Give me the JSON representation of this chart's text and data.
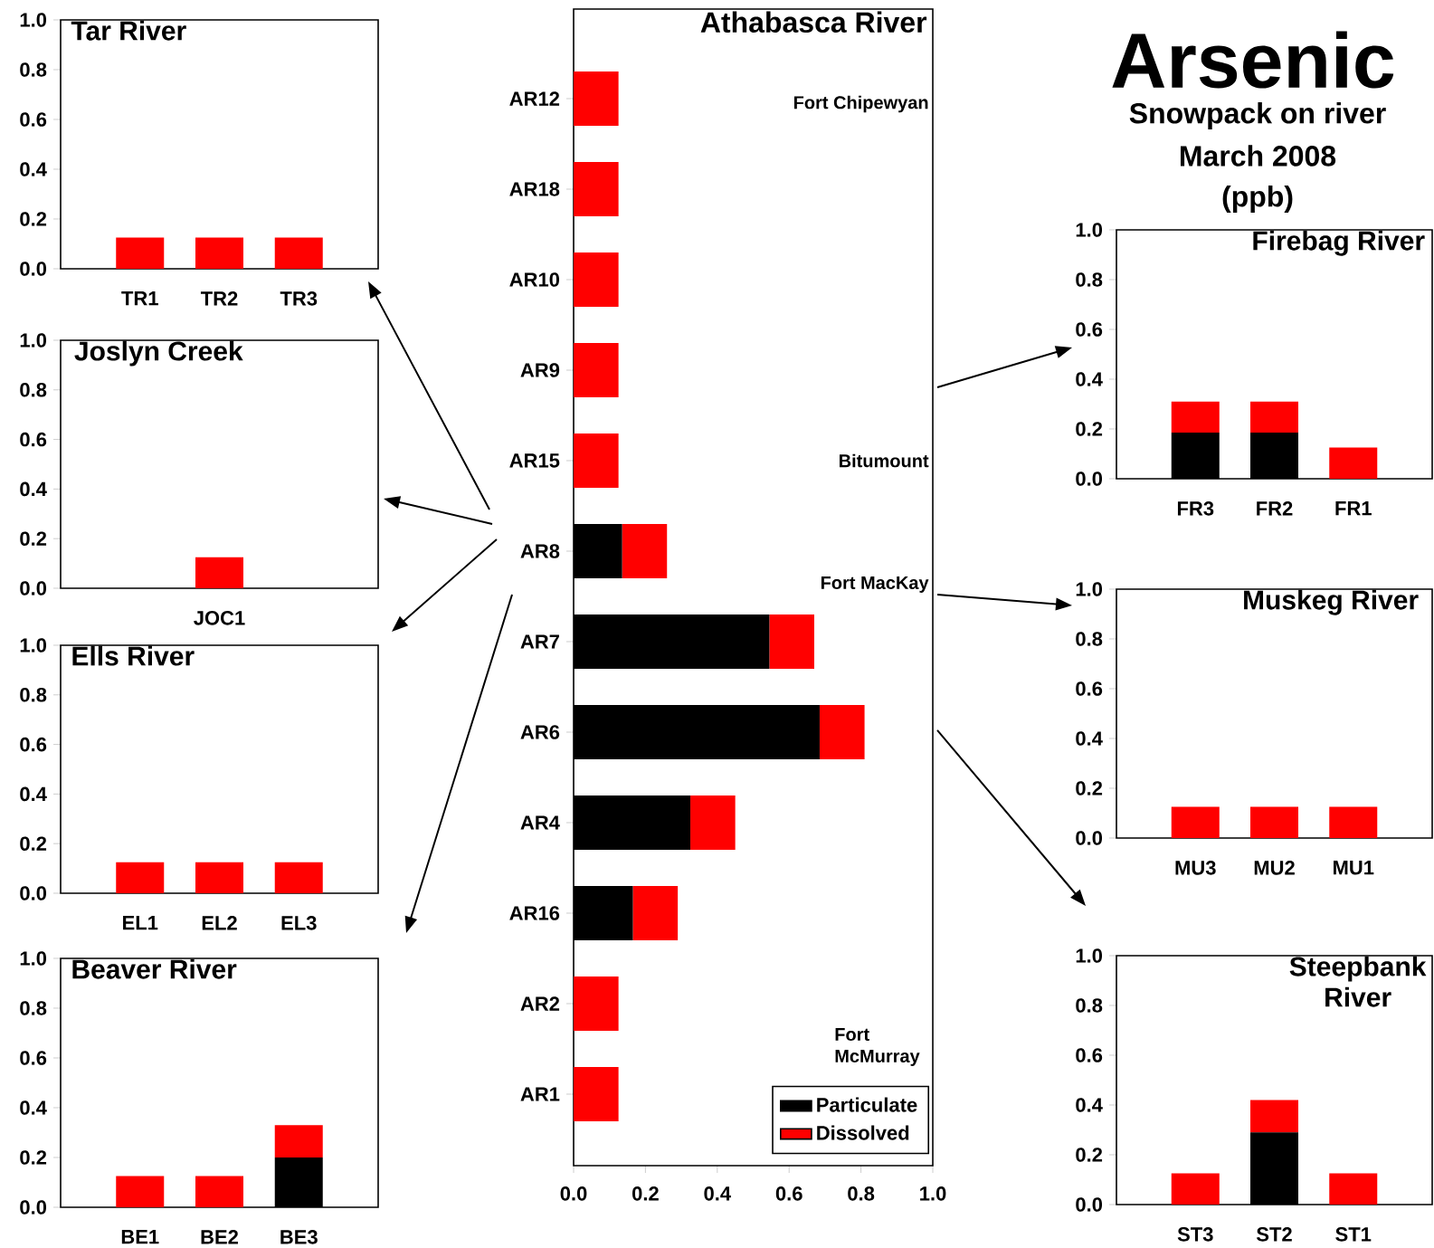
{
  "chart_data": [
    {
      "type": "bar",
      "stacked": true,
      "title": "Tar River",
      "categories": [
        "TR1",
        "TR2",
        "TR3"
      ],
      "series": [
        {
          "color": "#000000",
          "values": [
            0,
            0,
            0
          ]
        },
        {
          "color": "#ff0000",
          "values": [
            0.125,
            0.125,
            0.125
          ]
        }
      ],
      "ylim": [
        0,
        1
      ],
      "yticks": [
        {
          "value": 0,
          "label": "0.0"
        },
        {
          "value": 0.2,
          "label": "0.2"
        },
        {
          "value": 0.4,
          "label": "0.4"
        },
        {
          "value": 0.6,
          "label": "0.6"
        },
        {
          "value": 0.8,
          "label": "0.8"
        },
        {
          "value": 1,
          "label": "1.0"
        }
      ]
    },
    {
      "type": "bar",
      "stacked": true,
      "title": "Joslyn Creek",
      "categories": [
        "JOC1"
      ],
      "series": [
        {
          "color": "#000000",
          "values": [
            0
          ]
        },
        {
          "color": "#ff0000",
          "values": [
            0.125
          ]
        }
      ],
      "ylim": [
        0,
        1
      ],
      "yticks": [
        {
          "value": 0,
          "label": "0.0"
        },
        {
          "value": 0.2,
          "label": "0.2"
        },
        {
          "value": 0.4,
          "label": "0.4"
        },
        {
          "value": 0.6,
          "label": "0.6"
        },
        {
          "value": 0.8,
          "label": "0.8"
        },
        {
          "value": 1,
          "label": "1.0"
        }
      ]
    },
    {
      "type": "bar",
      "stacked": true,
      "title": "Ells River",
      "categories": [
        "EL1",
        "EL2",
        "EL3"
      ],
      "series": [
        {
          "color": "#000000",
          "values": [
            0,
            0,
            0
          ]
        },
        {
          "color": "#ff0000",
          "values": [
            0.125,
            0.125,
            0.125
          ]
        }
      ],
      "ylim": [
        0,
        1
      ],
      "yticks": [
        {
          "value": 0,
          "label": "0.0"
        },
        {
          "value": 0.2,
          "label": "0.2"
        },
        {
          "value": 0.4,
          "label": "0.4"
        },
        {
          "value": 0.6,
          "label": "0.6"
        },
        {
          "value": 0.8,
          "label": "0.8"
        },
        {
          "value": 1,
          "label": "1.0"
        }
      ]
    },
    {
      "type": "bar",
      "stacked": true,
      "title": "Beaver River",
      "categories": [
        "BE1",
        "BE2",
        "BE3"
      ],
      "series": [
        {
          "color": "#000000",
          "values": [
            0,
            0,
            0.2
          ]
        },
        {
          "color": "#ff0000",
          "values": [
            0.125,
            0.125,
            0.13
          ]
        }
      ],
      "ylim": [
        0,
        1
      ],
      "yticks": [
        {
          "value": 0,
          "label": "0.0"
        },
        {
          "value": 0.2,
          "label": "0.2"
        },
        {
          "value": 0.4,
          "label": "0.4"
        },
        {
          "value": 0.6,
          "label": "0.6"
        },
        {
          "value": 0.8,
          "label": "0.8"
        },
        {
          "value": 1,
          "label": "1.0"
        }
      ]
    },
    {
      "type": "bar",
      "stacked": true,
      "orientation": "horizontal",
      "title": "Athabasca River",
      "categories": [
        "AR12",
        "AR18",
        "AR10",
        "AR9",
        "AR15",
        "AR8",
        "AR7",
        "AR6",
        "AR4",
        "AR16",
        "AR2",
        "AR1"
      ],
      "series": [
        {
          "name": "Particulate",
          "color": "#000000",
          "values": [
            0,
            0,
            0,
            0,
            0,
            0.135,
            0.545,
            0.685,
            0.325,
            0.165,
            0,
            0
          ]
        },
        {
          "name": "Dissolved",
          "color": "#ff0000",
          "values": [
            0.125,
            0.125,
            0.125,
            0.125,
            0.125,
            0.125,
            0.125,
            0.125,
            0.125,
            0.125,
            0.125,
            0.125
          ]
        }
      ],
      "xlim": [
        0,
        1
      ],
      "xticks": [
        {
          "value": 0,
          "label": "0.0"
        },
        {
          "value": 0.2,
          "label": "0.2"
        },
        {
          "value": 0.4,
          "label": "0.4"
        },
        {
          "value": 0.6,
          "label": "0.6"
        },
        {
          "value": 0.8,
          "label": "0.8"
        },
        {
          "value": 1,
          "label": "1.0"
        }
      ],
      "legend": "bottom right",
      "annotations": [
        "Fort Chipewyan",
        "Bitumount",
        "Fort MacKay",
        "Fort McMurray"
      ]
    },
    {
      "type": "bar",
      "stacked": true,
      "title": "Firebag River",
      "categories": [
        "FR3",
        "FR2",
        "FR1"
      ],
      "series": [
        {
          "color": "#000000",
          "values": [
            0.185,
            0.185,
            0
          ]
        },
        {
          "color": "#ff0000",
          "values": [
            0.125,
            0.125,
            0.125
          ]
        }
      ],
      "ylim": [
        0,
        1
      ],
      "yticks": [
        {
          "value": 0,
          "label": "0.0"
        },
        {
          "value": 0.2,
          "label": "0.2"
        },
        {
          "value": 0.4,
          "label": "0.4"
        },
        {
          "value": 0.6,
          "label": "0.6"
        },
        {
          "value": 0.8,
          "label": "0.8"
        },
        {
          "value": 1,
          "label": "1.0"
        }
      ]
    },
    {
      "type": "bar",
      "stacked": true,
      "title": "Muskeg River",
      "categories": [
        "MU3",
        "MU2",
        "MU1"
      ],
      "series": [
        {
          "color": "#000000",
          "values": [
            0,
            0,
            0
          ]
        },
        {
          "color": "#ff0000",
          "values": [
            0.125,
            0.125,
            0.125
          ]
        }
      ],
      "ylim": [
        0,
        1
      ],
      "yticks": [
        {
          "value": 0,
          "label": "0.0"
        },
        {
          "value": 0.2,
          "label": "0.2"
        },
        {
          "value": 0.4,
          "label": "0.4"
        },
        {
          "value": 0.6,
          "label": "0.6"
        },
        {
          "value": 0.8,
          "label": "0.8"
        },
        {
          "value": 1,
          "label": "1.0"
        }
      ]
    },
    {
      "type": "bar",
      "stacked": true,
      "title": "Steepbank River",
      "categories": [
        "ST3",
        "ST2",
        "ST1"
      ],
      "series": [
        {
          "color": "#000000",
          "values": [
            0,
            0.29,
            0
          ]
        },
        {
          "color": "#ff0000",
          "values": [
            0.125,
            0.13,
            0.125
          ]
        }
      ],
      "ylim": [
        0,
        1
      ],
      "yticks": [
        {
          "value": 0,
          "label": "0.0"
        },
        {
          "value": 0.2,
          "label": "0.2"
        },
        {
          "value": 0.4,
          "label": "0.4"
        },
        {
          "value": 0.6,
          "label": "0.6"
        },
        {
          "value": 0.8,
          "label": "0.8"
        },
        {
          "value": 1,
          "label": "1.0"
        }
      ]
    },
    {
      "type": "other",
      "title": "Arsenic",
      "annotations": [
        "Snowpack on river",
        "March 2008",
        "(ppb)"
      ]
    }
  ]
}
